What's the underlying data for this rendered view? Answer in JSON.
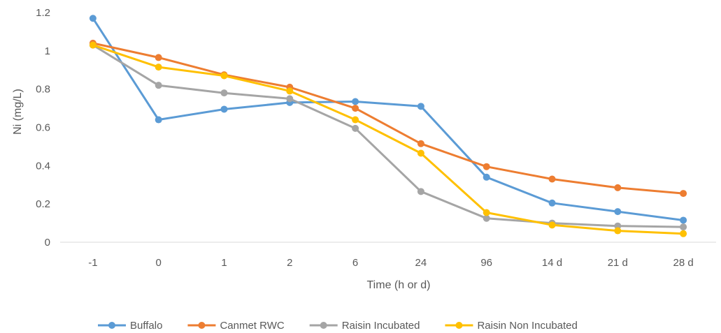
{
  "chart_data": {
    "type": "line",
    "title": "",
    "xlabel": "Time (h or d)",
    "ylabel": "Ni (mg/L)",
    "categories": [
      "-1",
      "0",
      "1",
      "2",
      "6",
      "24",
      "96",
      "14 d",
      "21 d",
      "28 d"
    ],
    "ylim": [
      0,
      1.2
    ],
    "yticks": [
      "0",
      "0.2",
      "0.4",
      "0.6",
      "0.8",
      "1",
      "1.2"
    ],
    "grid": false,
    "legend_position": "bottom",
    "series": [
      {
        "name": "Buffalo",
        "color": "#5B9BD5",
        "values": [
          1.17,
          0.64,
          0.695,
          0.73,
          0.735,
          0.71,
          0.34,
          0.205,
          0.16,
          0.115
        ]
      },
      {
        "name": "Canmet RWC",
        "color": "#ED7D31",
        "values": [
          1.04,
          0.965,
          0.875,
          0.81,
          0.7,
          0.515,
          0.395,
          0.33,
          0.285,
          0.255
        ]
      },
      {
        "name": "Raisin Incubated",
        "color": "#A5A5A5",
        "values": [
          1.03,
          0.82,
          0.78,
          0.75,
          0.595,
          0.265,
          0.125,
          0.1,
          0.085,
          0.08
        ]
      },
      {
        "name": "Raisin Non Incubated",
        "color": "#FFC000",
        "values": [
          1.03,
          0.915,
          0.87,
          0.79,
          0.64,
          0.465,
          0.155,
          0.09,
          0.06,
          0.045
        ]
      }
    ]
  }
}
